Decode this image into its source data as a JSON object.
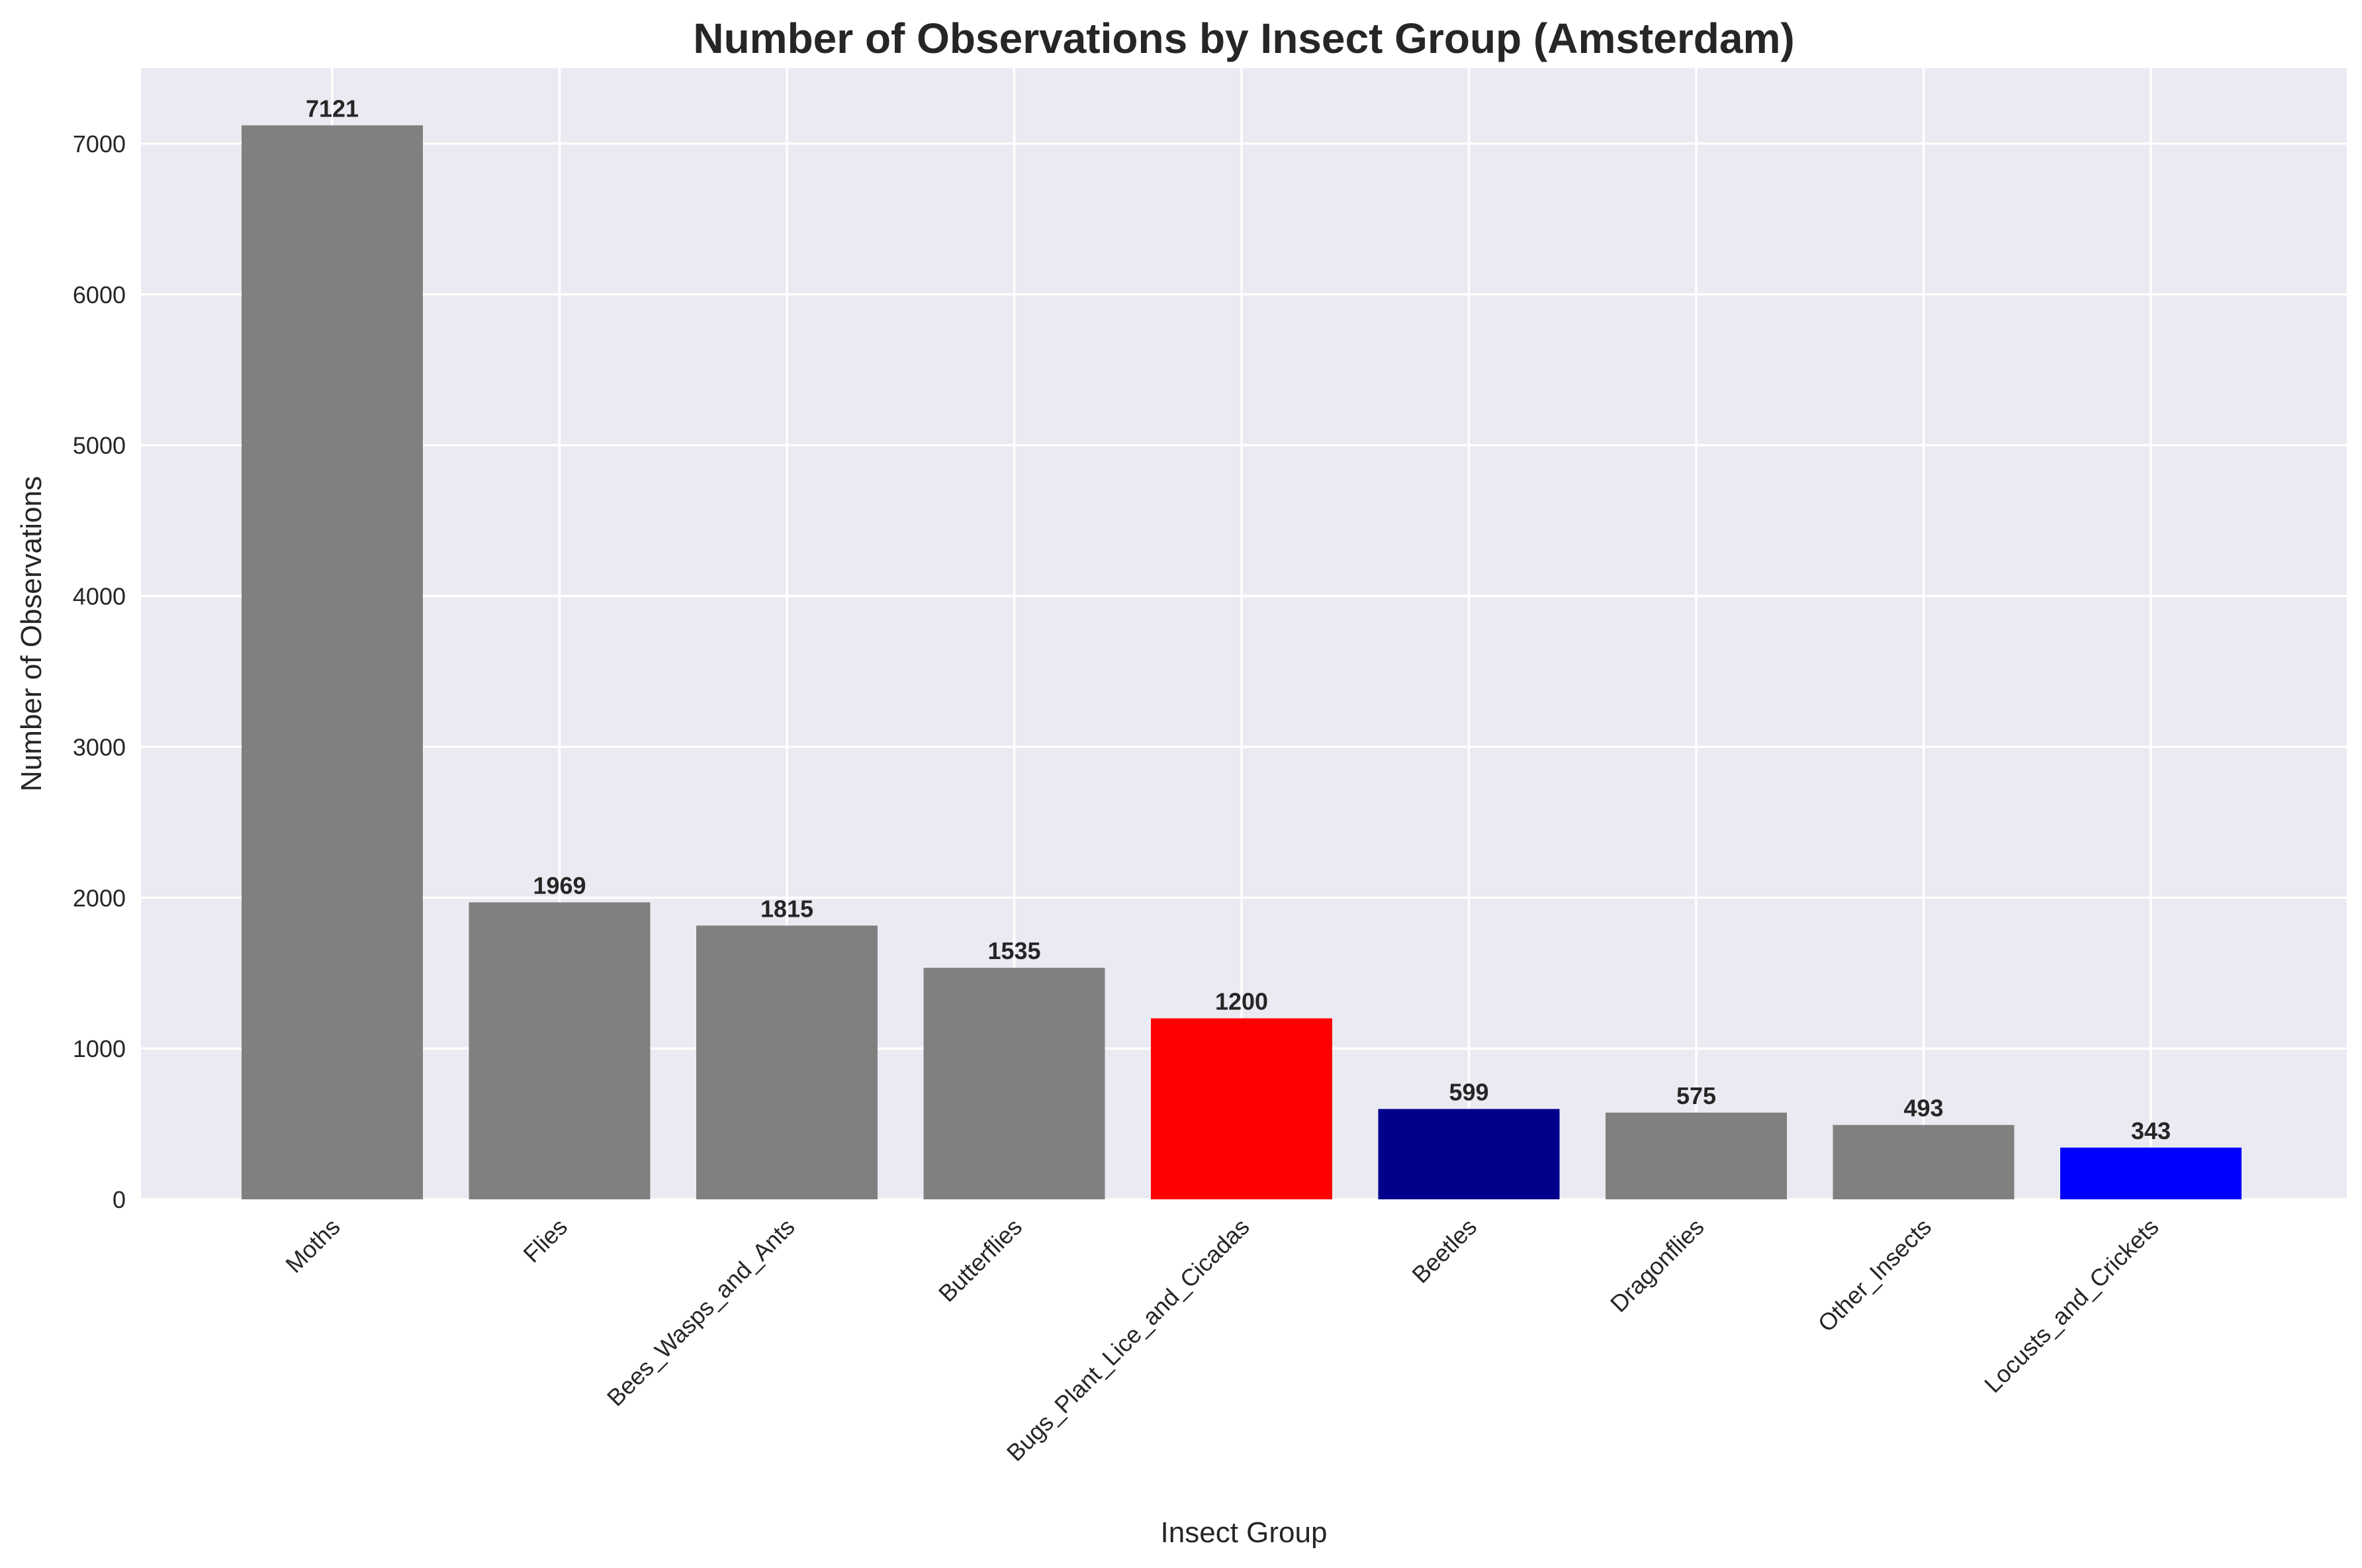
{
  "chart_data": {
    "type": "bar",
    "title": "Number of Observations by Insect Group (Amsterdam)",
    "xlabel": "Insect Group",
    "ylabel": "Number of Observations",
    "categories": [
      "Moths",
      "Flies",
      "Bees_Wasps_and_Ants",
      "Butterflies",
      "Bugs_Plant_Lice_and_Cicadas",
      "Beetles",
      "Dragonflies",
      "Other_Insects",
      "Locusts_and_Crickets"
    ],
    "values": [
      7121,
      1969,
      1815,
      1535,
      1200,
      599,
      575,
      493,
      343
    ],
    "data_labels": [
      "7121",
      "1969",
      "1815",
      "1535",
      "1200",
      "599",
      "575",
      "493",
      "343"
    ],
    "bar_colors": [
      "#808080",
      "#808080",
      "#808080",
      "#808080",
      "#ff0000",
      "#00008b",
      "#808080",
      "#808080",
      "#0000ff"
    ],
    "yticks": [
      0,
      1000,
      2000,
      3000,
      4000,
      5000,
      6000,
      7000
    ],
    "ytick_labels": [
      "0",
      "1000",
      "2000",
      "3000",
      "4000",
      "5000",
      "6000",
      "7000"
    ],
    "ylim": [
      0,
      7500
    ],
    "grid": true,
    "background_color": "#eaeaf2",
    "grid_color": "#ffffff"
  }
}
